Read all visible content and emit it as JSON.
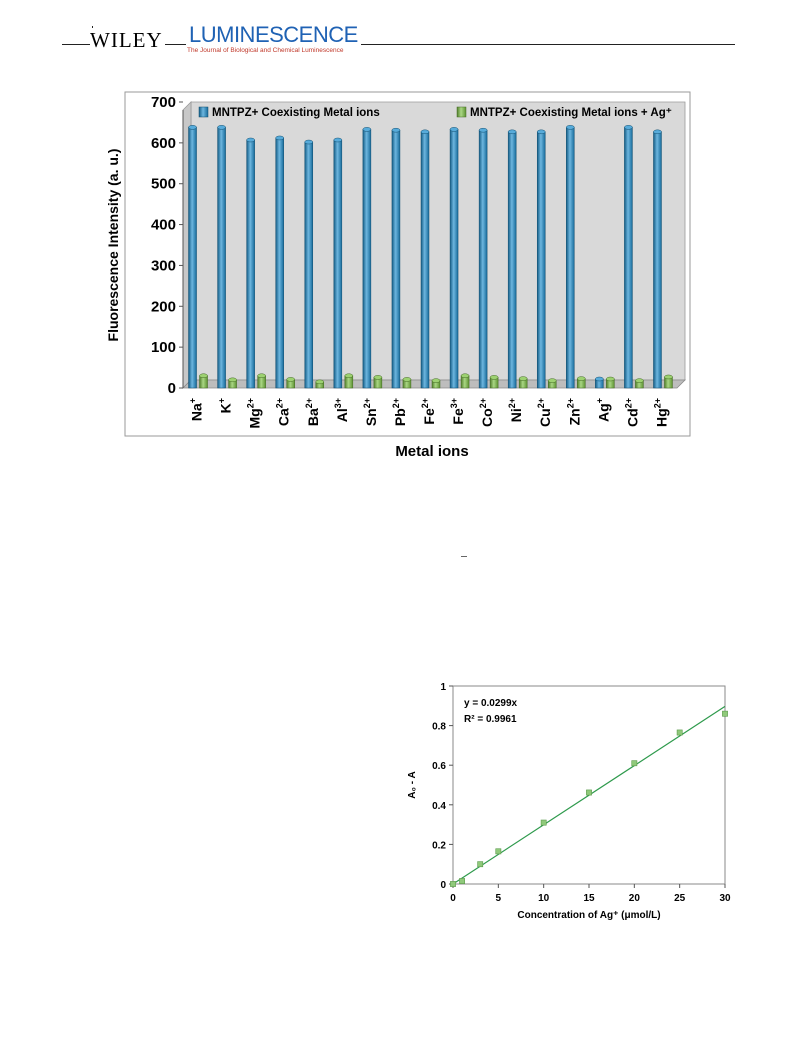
{
  "header": {
    "publisher": "WILEY",
    "journal": "LUMINESCENCE",
    "journal_subtitle": "The Journal of Biological and Chemical Luminescence"
  },
  "chart_data": [
    {
      "type": "bar",
      "title": "",
      "xlabel": "Metal ions",
      "ylabel": "Fluorescence Intensity (a. u.)",
      "ylim": [
        0,
        700
      ],
      "yticks": [
        0,
        100,
        200,
        300,
        400,
        500,
        600,
        700
      ],
      "categories": [
        "Na",
        "K",
        "Mg",
        "Ca",
        "Ba",
        "Al",
        "Sn",
        "Pb",
        "Fe",
        "Fe",
        "Co",
        "Ni",
        "Cu",
        "Zn",
        "Ag",
        "Cd",
        "Hg"
      ],
      "category_charges": [
        "+",
        "+",
        "2+",
        "2+",
        "2+",
        "3+",
        "2+",
        "2+",
        "2+",
        "3+",
        "2+",
        "2+",
        "2+",
        "2+",
        "+",
        "2+",
        "2+"
      ],
      "legend_position": "top",
      "grid": false,
      "series": [
        {
          "name": "MNTPZ+ Coexisting Metal ions",
          "color": "#1f8fce",
          "values": [
            638,
            638,
            607,
            612,
            602,
            607,
            633,
            631,
            627,
            633,
            631,
            627,
            627,
            638,
            22,
            638,
            627
          ]
        },
        {
          "name": "MNTPZ+ Coexisting Metal ions + Ag⁺",
          "color": "#7cc242",
          "values": [
            30,
            20,
            30,
            21,
            15,
            30,
            26,
            21,
            18,
            30,
            26,
            23,
            18,
            23,
            22,
            18,
            27
          ]
        }
      ]
    },
    {
      "type": "scatter",
      "title": "",
      "xlabel": "Concentration of Ag⁺ (μmol/L)",
      "ylabel": "A₀ - A",
      "xlim": [
        0,
        30
      ],
      "ylim": [
        0,
        1
      ],
      "xticks": [
        0,
        5,
        10,
        15,
        20,
        25,
        30
      ],
      "yticks": [
        0,
        0.2,
        0.4,
        0.6,
        0.8,
        1
      ],
      "ytick_labels": [
        "0",
        "0.2",
        "0.4",
        "0.6",
        "0.8",
        "1"
      ],
      "grid": false,
      "equation": "y = 0.0299x",
      "r_squared": "R² = 0.9961",
      "fit": {
        "slope": 0.0299,
        "intercept": 0,
        "color": "#2e9a4c"
      },
      "marker_color": "#8fc97a",
      "points": [
        {
          "x": 0,
          "y": 0
        },
        {
          "x": 1,
          "y": 0.015
        },
        {
          "x": 3,
          "y": 0.1
        },
        {
          "x": 5,
          "y": 0.165
        },
        {
          "x": 10,
          "y": 0.31
        },
        {
          "x": 15,
          "y": 0.462
        },
        {
          "x": 20,
          "y": 0.61
        },
        {
          "x": 25,
          "y": 0.765
        },
        {
          "x": 30,
          "y": 0.86
        }
      ]
    }
  ]
}
